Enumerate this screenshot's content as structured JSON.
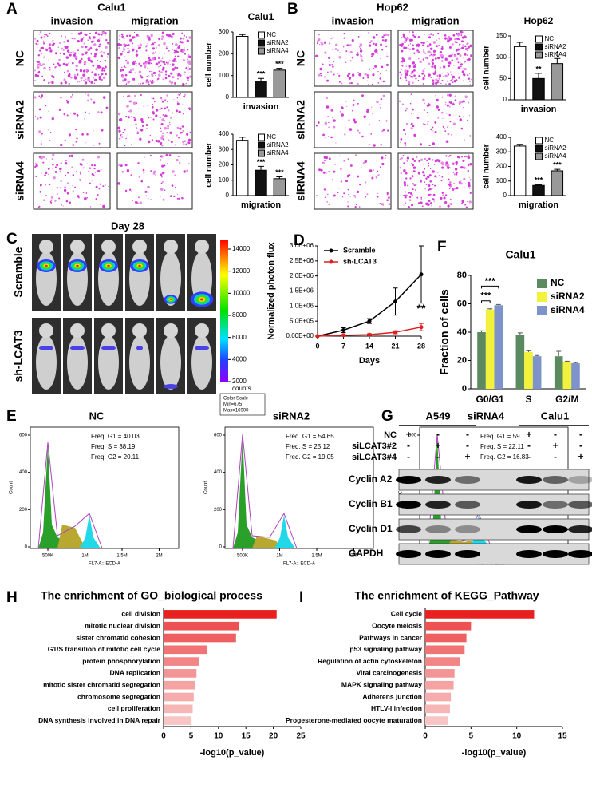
{
  "chart_data": [
    {
      "type": "bar",
      "title": "Calu1",
      "categories": [
        "NC",
        "siRNA2",
        "siRNA4"
      ],
      "values": [
        280,
        75,
        125
      ],
      "errors": [
        8,
        12,
        8
      ],
      "significance": [
        null,
        "***",
        "***"
      ],
      "colors": [
        "#ffffff",
        "#111111",
        "#999999"
      ],
      "ylim": [
        0,
        300
      ],
      "yticks": [
        0,
        100,
        200,
        300
      ],
      "ylabel": "cell number",
      "xlabel": "invasion"
    },
    {
      "type": "bar",
      "categories": [
        "NC",
        "siRNA2",
        "siRNA4"
      ],
      "values": [
        360,
        165,
        110
      ],
      "errors": [
        20,
        25,
        12
      ],
      "significance": [
        null,
        "***",
        "***"
      ],
      "colors": [
        "#ffffff",
        "#111111",
        "#999999"
      ],
      "ylim": [
        0,
        400
      ],
      "yticks": [
        0,
        100,
        200,
        300,
        400
      ],
      "ylabel": "cell number",
      "xlabel": "migration"
    },
    {
      "type": "bar",
      "title": "Hop62",
      "categories": [
        "NC",
        "siRNA2",
        "siRNA4"
      ],
      "values": [
        125,
        50,
        85
      ],
      "errors": [
        10,
        12,
        12
      ],
      "significance": [
        null,
        "**",
        "*"
      ],
      "colors": [
        "#ffffff",
        "#111111",
        "#999999"
      ],
      "ylim": [
        0,
        150
      ],
      "yticks": [
        0,
        50,
        100,
        150
      ],
      "ylabel": "cell number",
      "xlabel": "invasion"
    },
    {
      "type": "bar",
      "categories": [
        "NC",
        "siRNA2",
        "siRNA4"
      ],
      "values": [
        340,
        70,
        170
      ],
      "errors": [
        12,
        5,
        10
      ],
      "significance": [
        null,
        "***",
        "***"
      ],
      "colors": [
        "#ffffff",
        "#111111",
        "#999999"
      ],
      "ylim": [
        0,
        400
      ],
      "yticks": [
        0,
        100,
        200,
        300,
        400
      ],
      "ylabel": "cell number",
      "xlabel": "migration"
    },
    {
      "type": "line",
      "panel": "D",
      "x": [
        0,
        7,
        14,
        21,
        28
      ],
      "xlim": [
        0,
        28
      ],
      "xticks": [
        0,
        7,
        14,
        21,
        28
      ],
      "xlabel": "Days",
      "ylabel": "Normalized photon flux",
      "ylim": [
        0,
        3000000
      ],
      "yticks": [
        {
          "value": 0,
          "label": "0.00E+00"
        },
        {
          "value": 500000,
          "label": "5.0E+05"
        },
        {
          "value": 1000000,
          "label": "1.0E+06"
        },
        {
          "value": 1500000,
          "label": "1.5E+06"
        },
        {
          "value": 2000000,
          "label": "2.0E+06"
        },
        {
          "value": 2500000,
          "label": "2.5E+06"
        },
        {
          "value": 3000000,
          "label": "3.0E+06"
        }
      ],
      "series": [
        {
          "name": "Scramble",
          "color": "#000000",
          "values": [
            0,
            200000,
            500000,
            1150000,
            2050000
          ],
          "errors": [
            0,
            80000,
            80000,
            450000,
            950000
          ]
        },
        {
          "name": "sh-LCAT3",
          "color": "#e02020",
          "values": [
            0,
            30000,
            50000,
            130000,
            300000
          ],
          "errors": [
            0,
            20000,
            30000,
            50000,
            120000
          ]
        }
      ],
      "annotation": "**"
    },
    {
      "type": "bar",
      "panel": "F",
      "title": "Calu1",
      "ylabel": "Fraction of cells",
      "categories": [
        "G0/G1",
        "S",
        "G2/M"
      ],
      "series": [
        {
          "name": "NC",
          "color": "#5b8a5e",
          "values": [
            40,
            38,
            23
          ],
          "errors": [
            1,
            1.5,
            3.5
          ]
        },
        {
          "name": "siRNA2",
          "color": "#f2f23c",
          "values": [
            56,
            26,
            19
          ],
          "errors": [
            0.5,
            0.8,
            0.5
          ]
        },
        {
          "name": "siRNA4",
          "color": "#7d93c9",
          "values": [
            59,
            23,
            18
          ],
          "errors": [
            0.5,
            0.5,
            0.5
          ]
        }
      ],
      "ylim": [
        0,
        80
      ],
      "yticks": [
        0,
        20,
        40,
        60,
        80
      ],
      "annotations": [
        "***",
        "***"
      ]
    },
    {
      "type": "barh",
      "panel": "H",
      "title": "The enrichment of GO_biological process",
      "categories": [
        "cell division",
        "mitotic nuclear division",
        "sister chromatid cohesion",
        "G1/S transition of mitotic cell cycle",
        "protein phosphorylation",
        "DNA replication",
        "mitotic sister chromatid segregation",
        "chromosome segregation",
        "cell proliferation",
        "DNA synthesis involved in DNA repair"
      ],
      "values": [
        20.6,
        13.8,
        13.2,
        8,
        6.5,
        6,
        5.8,
        5.5,
        5.3,
        5.1
      ],
      "colors": [
        "#e8201f",
        "#ee5152",
        "#ef5f60",
        "#f07475",
        "#f28686",
        "#f39595",
        "#f5a2a2",
        "#f6acac",
        "#f7b6b6",
        "#f9c4c4"
      ],
      "xlim": [
        0,
        25
      ],
      "xticks": [
        0,
        5,
        10,
        15,
        20,
        25
      ],
      "xlabel": "-log10(p_value)"
    },
    {
      "type": "barh",
      "panel": "I",
      "title": "The enrichment of KEGG_Pathway",
      "categories": [
        "Cell cycle",
        "Oocyte meiosis",
        "Pathways in cancer",
        "p53 signaling pathway",
        "Regulation of actin cytoskeleton",
        "Viral carcinogenesis",
        "MAPK signaling pathway",
        "Adherens junction",
        "HTLV-I infection",
        "Progesterone-mediated oocyte maturation"
      ],
      "values": [
        11.9,
        5,
        4.5,
        4.3,
        3.8,
        3.2,
        3.1,
        2.8,
        2.7,
        2.5
      ],
      "colors": [
        "#e8201f",
        "#ee5152",
        "#ef5f60",
        "#f07475",
        "#f28686",
        "#f39595",
        "#f5a2a2",
        "#f6acac",
        "#f7b6b6",
        "#f9c4c4"
      ],
      "xlim": [
        0,
        15
      ],
      "xticks": [
        0,
        5,
        10,
        15
      ],
      "xlabel": "-log10(p_value)"
    }
  ],
  "image_panels": [
    {
      "panel": "A",
      "title": "Calu1",
      "columns": [
        "invasion",
        "migration"
      ],
      "rows": [
        "NC",
        "siRNA2",
        "siRNA4"
      ]
    },
    {
      "panel": "B",
      "title": "Hop62",
      "columns": [
        "invasion",
        "migration"
      ],
      "rows": [
        "NC",
        "siRNA2",
        "siRNA4"
      ]
    }
  ],
  "imaging": {
    "panel": "C",
    "title": "Day 28",
    "rows": [
      "Scramble",
      "sh-LCAT3"
    ],
    "colorbar": {
      "ticks": [
        14000,
        12000,
        10000,
        8000,
        6000,
        4000,
        2000
      ],
      "unit": "counts"
    },
    "scale_note": [
      "Color Scale",
      "Min=675",
      "Max=16900"
    ]
  },
  "flow": {
    "panel": "E",
    "plots": [
      {
        "title": "NC",
        "stats": [
          "Freq. G1 = 40.03",
          "Freq. S = 38.19",
          "Freq. G2 = 20.11"
        ]
      },
      {
        "title": "siRNA2",
        "stats": [
          "Freq. G1 = 54.65",
          "Freq. S = 25.12",
          "Freq. G2 = 19.05"
        ]
      },
      {
        "title": "siRNA4",
        "stats": [
          "Freq. G1 = 59",
          "Freq. S = 22.11",
          "Freq. G2 = 16.83"
        ]
      }
    ],
    "yticks": [
      0,
      200,
      400,
      600
    ],
    "xticks": [
      "500K",
      "1M",
      "1.5M",
      "2M"
    ],
    "xlabel": "FL7-A:: ECD-A",
    "ylabel": "Count"
  },
  "blot": {
    "panel": "G",
    "groups": [
      "A549",
      "Calu1"
    ],
    "conditions": [
      "NC",
      "siLCAT3#2",
      "siLCAT3#4"
    ],
    "signs": [
      [
        "+",
        "-",
        "-",
        "+",
        "-",
        "-"
      ],
      [
        "-",
        "+",
        "-",
        "-",
        "+",
        "-"
      ],
      [
        "-",
        "-",
        "+",
        "-",
        "-",
        "+"
      ]
    ],
    "bands": [
      "Cyclin A2",
      "Cyclin B1",
      "Cyclin D1",
      "GAPDH"
    ]
  }
}
